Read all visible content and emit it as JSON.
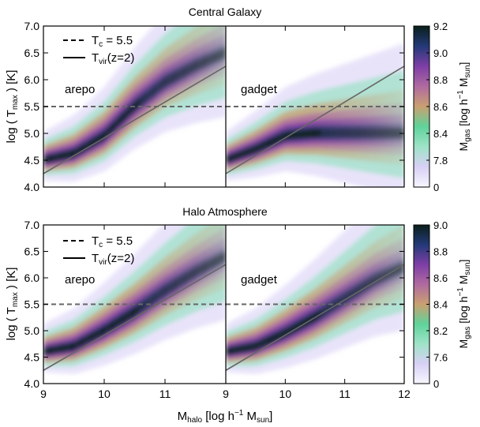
{
  "figure": {
    "xlabel": {
      "base": "M",
      "sub1": "halo",
      "mid": " [log h",
      "sup": "−1",
      "mid2": " M",
      "sub2": "sun",
      "end": "]"
    },
    "ylabel": {
      "base": "log ( T",
      "sub": "max",
      "end": " ) [K]"
    },
    "colorbar_label": {
      "base": "M",
      "sub1": "gas",
      "mid": "  [log h",
      "sup": "−1",
      "mid2": " M",
      "sub2": "sun",
      "end": "]"
    },
    "legend": [
      {
        "style": "dashed",
        "base": "T",
        "sub": "c",
        "rest": " = 5.5"
      },
      {
        "style": "solid",
        "base": "T",
        "sub": "vir",
        "rest": "(z=2)"
      }
    ],
    "colors": {
      "arepo_label": "#22c42a",
      "gadget_label": "#b8652a",
      "ref_line": "#666666"
    },
    "colormap": [
      "#f7f7ff",
      "#d8d0f5",
      "#9fe3c8",
      "#5fd39a",
      "#c9a070",
      "#b06aa0",
      "#7e3ea6",
      "#233a78",
      "#0a1f1a"
    ]
  },
  "chart_data": [
    {
      "type": "heatmap",
      "title": "Central Galaxy",
      "xlim": [
        9,
        12
      ],
      "ylim": [
        4.0,
        7.0
      ],
      "yticks": [
        "4.0",
        "4.5",
        "5.0",
        "5.5",
        "6.0",
        "6.5",
        "7.0"
      ],
      "xticks": [],
      "colorbar": {
        "ticks": [
          "0",
          "7.8",
          "8.4",
          "8.6",
          "8.8",
          "9.0",
          "9.2"
        ]
      },
      "reference_lines": {
        "Tc": 5.5,
        "Tvir_slope": 0.667,
        "Tvir_at_9": 4.25
      },
      "panels": [
        {
          "label": "arepo",
          "ridge": [
            [
              9.0,
              4.5
            ],
            [
              9.5,
              4.62
            ],
            [
              10.0,
              4.95
            ],
            [
              10.5,
              5.5
            ],
            [
              11.0,
              5.95
            ],
            [
              11.5,
              6.25
            ],
            [
              12.0,
              6.5
            ]
          ]
        },
        {
          "label": "gadget",
          "ridge": [
            [
              9.0,
              4.5
            ],
            [
              9.5,
              4.7
            ],
            [
              10.0,
              4.95
            ],
            [
              10.5,
              5.0
            ],
            [
              11.0,
              5.0
            ],
            [
              11.5,
              5.0
            ],
            [
              12.0,
              5.0
            ]
          ]
        }
      ]
    },
    {
      "type": "heatmap",
      "title": "Halo Atmosphere",
      "xlim": [
        9,
        12
      ],
      "ylim": [
        4.0,
        7.0
      ],
      "yticks": [
        "4.0",
        "4.5",
        "5.0",
        "5.5",
        "6.0",
        "6.5",
        "7.0"
      ],
      "xticks": [
        "9",
        "10",
        "11",
        "9",
        "10",
        "11",
        "12"
      ],
      "colorbar": {
        "ticks": [
          "0",
          "7.6",
          "8.2",
          "8.4",
          "8.6",
          "8.8",
          "9.0"
        ]
      },
      "reference_lines": {
        "Tc": 5.5,
        "Tvir_slope": 0.667,
        "Tvir_at_9": 4.25
      },
      "panels": [
        {
          "label": "arepo",
          "ridge": [
            [
              9.0,
              4.6
            ],
            [
              9.5,
              4.7
            ],
            [
              10.0,
              5.0
            ],
            [
              10.5,
              5.35
            ],
            [
              11.0,
              5.75
            ],
            [
              11.5,
              6.1
            ],
            [
              12.0,
              6.4
            ]
          ]
        },
        {
          "label": "gadget",
          "ridge": [
            [
              9.0,
              4.6
            ],
            [
              9.5,
              4.7
            ],
            [
              10.0,
              4.95
            ],
            [
              10.5,
              5.25
            ],
            [
              11.0,
              5.6
            ],
            [
              11.5,
              5.95
            ],
            [
              12.0,
              6.2
            ]
          ]
        }
      ]
    }
  ]
}
